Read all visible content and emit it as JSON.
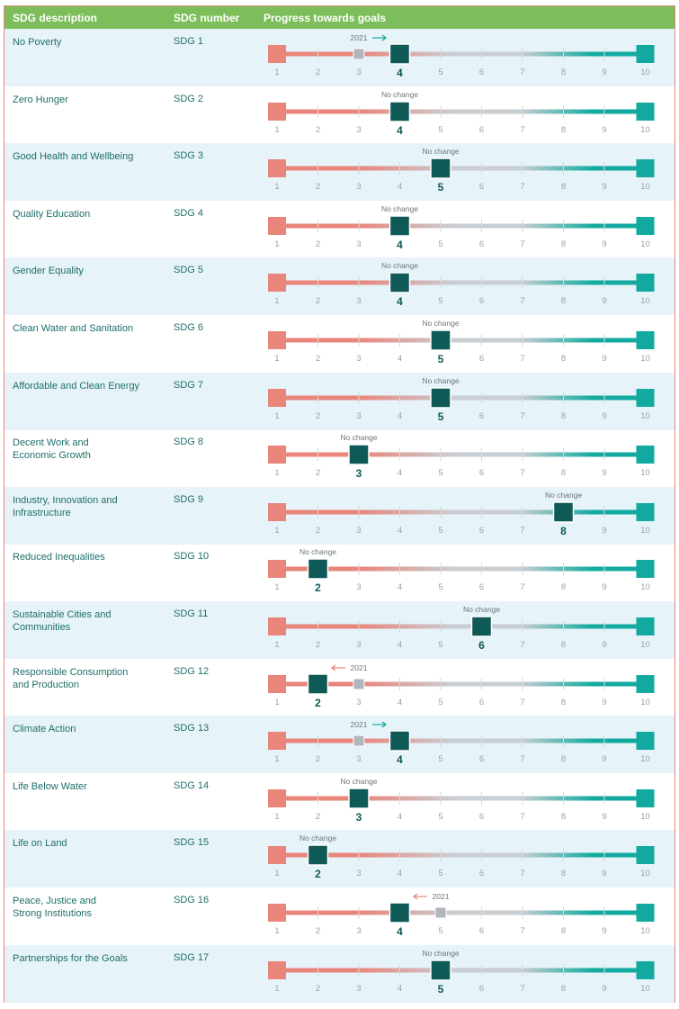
{
  "header": {
    "col_desc": "SDG description",
    "col_num": "SDG number",
    "col_progress": "Progress towards goals"
  },
  "colors": {
    "header_bg": "#7dbe5a",
    "row_shade": "#e6f3f8",
    "low_end": "#e9857a",
    "high_end": "#12aaa0",
    "mid_track": "#c9ced2",
    "current_marker": "#0f5957",
    "previous_marker": "#b0b7bc",
    "arrow_up": "#12aaa0",
    "arrow_down": "#e9857a",
    "border": "#e8887e"
  },
  "chart_data": {
    "type": "table",
    "scale": [
      1,
      2,
      3,
      4,
      5,
      6,
      7,
      8,
      9,
      10
    ],
    "rows": [
      {
        "description": "No Poverty",
        "sdg": "SDG 1",
        "current": 4,
        "previous": 3,
        "note": "2021"
      },
      {
        "description": "Zero Hunger",
        "sdg": "SDG 2",
        "current": 4,
        "previous": null,
        "note": "No change"
      },
      {
        "description": "Good Health and Wellbeing",
        "sdg": "SDG 3",
        "current": 5,
        "previous": null,
        "note": "No change"
      },
      {
        "description": "Quality Education",
        "sdg": "SDG 4",
        "current": 4,
        "previous": null,
        "note": "No change"
      },
      {
        "description": "Gender Equality",
        "sdg": "SDG 5",
        "current": 4,
        "previous": null,
        "note": "No change"
      },
      {
        "description": "Clean Water and Sanitation",
        "sdg": "SDG 6",
        "current": 5,
        "previous": null,
        "note": "No change"
      },
      {
        "description": "Affordable and Clean Energy",
        "sdg": "SDG 7",
        "current": 5,
        "previous": null,
        "note": "No change"
      },
      {
        "description": "Decent Work and\nEconomic Growth",
        "sdg": "SDG 8",
        "current": 3,
        "previous": null,
        "note": "No change"
      },
      {
        "description": "Industry, Innovation and\nInfrastructure",
        "sdg": "SDG 9",
        "current": 8,
        "previous": null,
        "note": "No change"
      },
      {
        "description": "Reduced Inequalities",
        "sdg": "SDG 10",
        "current": 2,
        "previous": null,
        "note": "No change"
      },
      {
        "description": "Sustainable Cities and\nCommunities",
        "sdg": "SDG 11",
        "current": 6,
        "previous": null,
        "note": "No change"
      },
      {
        "description": "Responsible Consumption\nand Production",
        "sdg": "SDG 12",
        "current": 2,
        "previous": 3,
        "note": "2021"
      },
      {
        "description": "Climate Action",
        "sdg": "SDG 13",
        "current": 4,
        "previous": 3,
        "note": "2021"
      },
      {
        "description": "Life Below Water",
        "sdg": "SDG 14",
        "current": 3,
        "previous": null,
        "note": "No change"
      },
      {
        "description": "Life on Land",
        "sdg": "SDG 15",
        "current": 2,
        "previous": null,
        "note": "No change"
      },
      {
        "description": "Peace, Justice and\nStrong Institutions",
        "sdg": "SDG 16",
        "current": 4,
        "previous": 5,
        "note": "2021"
      },
      {
        "description": "Partnerships for the Goals",
        "sdg": "SDG 17",
        "current": 5,
        "previous": null,
        "note": "No change"
      }
    ]
  }
}
